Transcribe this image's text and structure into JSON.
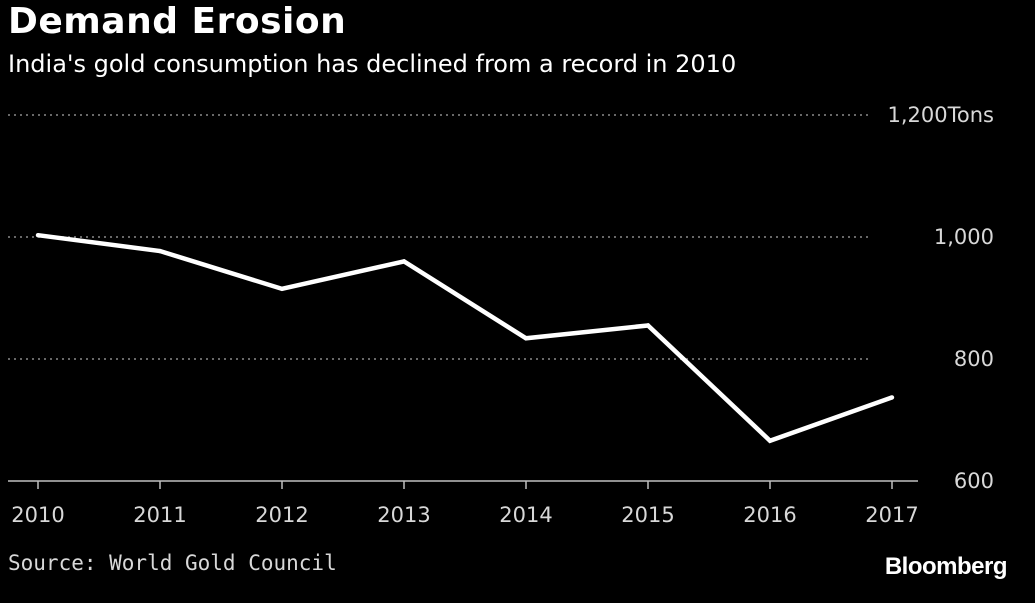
{
  "chart_data": {
    "type": "line",
    "title": "Demand Erosion",
    "subtitle": "India's gold consumption has declined from a record in 2010",
    "x": [
      2010,
      2011,
      2012,
      2013,
      2014,
      2015,
      2016,
      2017
    ],
    "x_tick_labels": [
      "2010",
      "2011",
      "2012",
      "2013",
      "2014",
      "2015",
      "2016",
      "2017"
    ],
    "series": [
      {
        "name": "India gold consumption",
        "values": [
          1003,
          977,
          915,
          960,
          834,
          855,
          666,
          737
        ]
      }
    ],
    "ylim": [
      600,
      1200
    ],
    "y_ticks": [
      600,
      800,
      1000,
      1200
    ],
    "y_tick_labels": [
      "600",
      "800",
      "1,000",
      "1,200Tons"
    ],
    "ylabel": "Tons",
    "xlabel": "",
    "grid": true,
    "source": "Source: World Gold Council",
    "brand": "Bloomberg",
    "colors": {
      "background": "#000000",
      "line": "#ffffff",
      "grid": "#8a8a8a",
      "axis": "#bfbfbf",
      "text": "#ffffff",
      "muted_text": "#d8d8d8"
    }
  }
}
